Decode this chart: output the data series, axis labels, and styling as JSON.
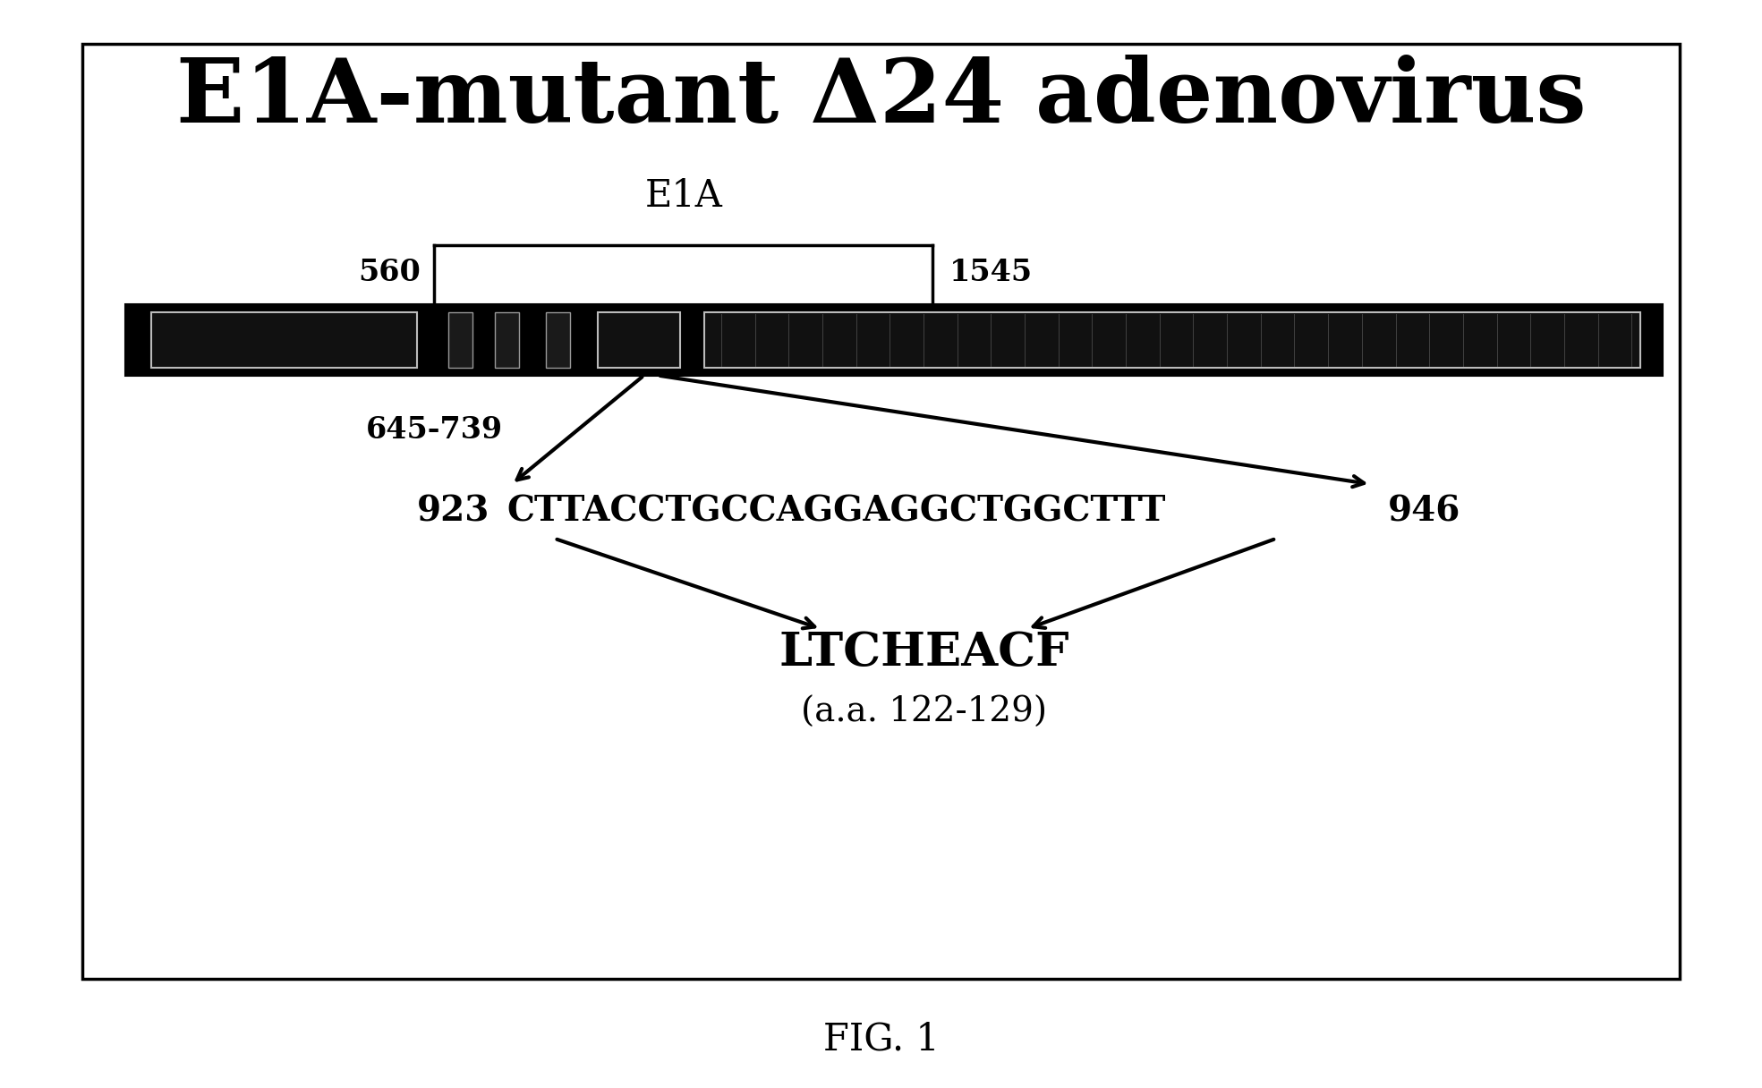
{
  "title": "E1A-mutant Δ24 adenovirus",
  "fig_label": "FIG. 1",
  "e1a_label": "E1A",
  "e1a_start": "560",
  "e1a_end": "1545",
  "deletion_label": "645-739",
  "dna_seq": "CTTACCTGCCAGGAGGCTGGCTTT",
  "seq_start": "923",
  "seq_end": "946",
  "aa_seq": "LTCHEACF",
  "aa_label": "(a.a. 122-129)",
  "bg_color": "#ffffff",
  "border_color": "#000000"
}
